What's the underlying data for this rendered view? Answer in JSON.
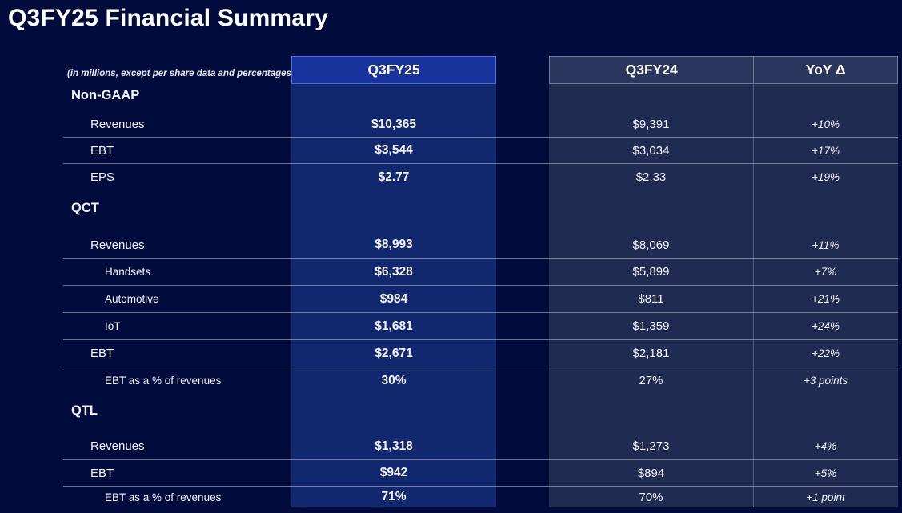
{
  "page": {
    "title": "Q3FY25 Financial Summary",
    "note": "(in millions, except per share data and percentages)"
  },
  "colors": {
    "page_bg": "#020c3c",
    "highlight_header": "#19339c",
    "highlight_border": "#4f6ce0",
    "highlight_body": "#12286e",
    "panel_header": "#2a365e",
    "panel_body": "#202b51",
    "grid_line": "rgba(178,185,200,0.6)",
    "text": "#f2f3f7"
  },
  "table": {
    "columns": [
      {
        "id": "q3fy25",
        "label": "Q3FY25",
        "highlighted": true
      },
      {
        "id": "q3fy24",
        "label": "Q3FY24",
        "highlighted": false
      },
      {
        "id": "yoy",
        "label": "YoY Δ",
        "highlighted": false
      }
    ],
    "rows": [
      {
        "type": "section",
        "label": "Non-GAAP",
        "q3fy25": "",
        "q3fy24": "",
        "yoy": "",
        "line_below": false
      },
      {
        "type": "item",
        "label": "Revenues",
        "q3fy25": "$10,365",
        "q3fy24": "$9,391",
        "yoy": "+10%",
        "line_below": true
      },
      {
        "type": "item",
        "label": "EBT",
        "q3fy25": "$3,544",
        "q3fy24": "$3,034",
        "yoy": "+17%",
        "line_below": true
      },
      {
        "type": "item",
        "label": "EPS",
        "q3fy25": "$2.77",
        "q3fy24": "$2.33",
        "yoy": "+19%",
        "line_below": false
      },
      {
        "type": "section",
        "label": "QCT",
        "q3fy25": "",
        "q3fy24": "",
        "yoy": "",
        "line_below": false
      },
      {
        "type": "item",
        "label": "Revenues",
        "q3fy25": "$8,993",
        "q3fy24": "$8,069",
        "yoy": "+11%",
        "line_below": true
      },
      {
        "type": "subitem",
        "label": "Handsets",
        "q3fy25": "$6,328",
        "q3fy24": "$5,899",
        "yoy": "+7%",
        "line_below": true
      },
      {
        "type": "subitem",
        "label": "Automotive",
        "q3fy25": "$984",
        "q3fy24": "$811",
        "yoy": "+21%",
        "line_below": true
      },
      {
        "type": "subitem",
        "label": "IoT",
        "q3fy25": "$1,681",
        "q3fy24": "$1,359",
        "yoy": "+24%",
        "line_below": true
      },
      {
        "type": "item",
        "label": "EBT",
        "q3fy25": "$2,671",
        "q3fy24": "$2,181",
        "yoy": "+22%",
        "line_below": true
      },
      {
        "type": "subitem",
        "label": "EBT as a % of revenues",
        "q3fy25": "30%",
        "q3fy24": "27%",
        "yoy": "+3 points",
        "line_below": false
      },
      {
        "type": "section",
        "label": "QTL",
        "q3fy25": "",
        "q3fy24": "",
        "yoy": "",
        "line_below": false
      },
      {
        "type": "item",
        "label": "Revenues",
        "q3fy25": "$1,318",
        "q3fy24": "$1,273",
        "yoy": "+4%",
        "line_below": true
      },
      {
        "type": "item",
        "label": "EBT",
        "q3fy25": "$942",
        "q3fy24": "$894",
        "yoy": "+5%",
        "line_below": true
      },
      {
        "type": "subitem",
        "label": "EBT as a % of revenues",
        "q3fy25": "71%",
        "q3fy24": "70%",
        "yoy": "+1 point",
        "line_below": false
      }
    ]
  }
}
